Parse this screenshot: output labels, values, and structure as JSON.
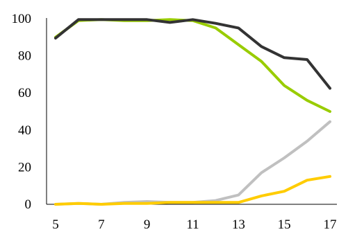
{
  "chart_data": {
    "type": "line",
    "title": "",
    "xlabel": "",
    "ylabel": "",
    "x": [
      5,
      6,
      7,
      8,
      9,
      10,
      11,
      12,
      13,
      14,
      15,
      16,
      17
    ],
    "x_ticks": [
      "5",
      "7",
      "9",
      "11",
      "13",
      "15",
      "17"
    ],
    "x_tick_values": [
      5,
      7,
      9,
      11,
      13,
      15,
      17
    ],
    "xlim": [
      5,
      17
    ],
    "y_ticks": [
      "0",
      "20",
      "40",
      "60",
      "80",
      "100"
    ],
    "y_tick_values": [
      0,
      20,
      40,
      60,
      80,
      100
    ],
    "ylim": [
      0,
      100
    ],
    "grid": false,
    "legend": "none",
    "series": [
      {
        "color": "#99cc00",
        "values": [
          90,
          99,
          99.5,
          99,
          99,
          99.5,
          99,
          95,
          86,
          77,
          64,
          56,
          50
        ]
      },
      {
        "color": "#c0c0c0",
        "values": [
          0,
          0.5,
          0,
          1,
          1.5,
          1,
          1,
          2,
          5,
          17,
          25,
          34,
          44.5
        ]
      },
      {
        "color": "#ffcc00",
        "values": [
          0,
          0.5,
          0,
          0.5,
          0.5,
          1,
          1,
          1,
          1,
          4.5,
          7,
          13,
          15
        ]
      },
      {
        "color": "#333333",
        "values": [
          89.5,
          99.5,
          99.5,
          99.5,
          99.5,
          98,
          99.5,
          97.5,
          95,
          85,
          79,
          78,
          62.5
        ]
      }
    ]
  }
}
